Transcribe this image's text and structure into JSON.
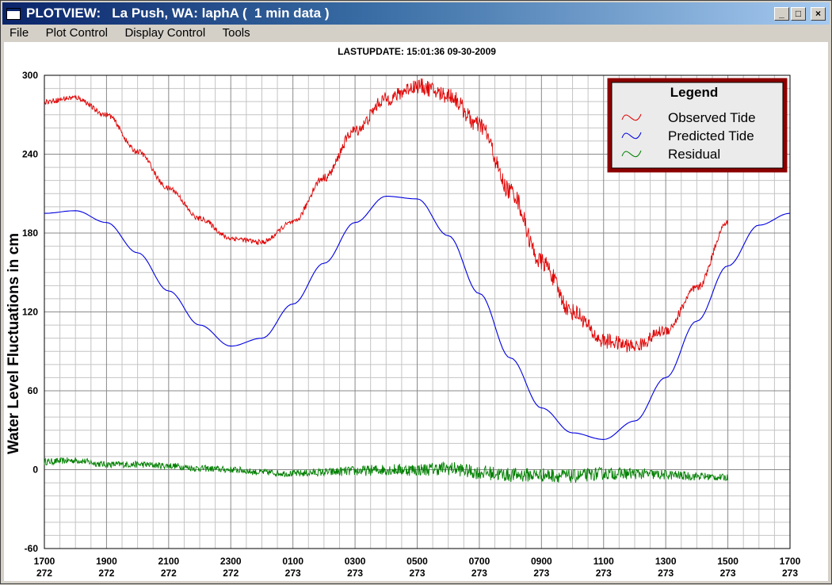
{
  "window": {
    "title": "PLOTVIEW:   La Push, WA: laphA (  1 min data )",
    "minimize_glyph": "_",
    "maximize_glyph": "□",
    "close_glyph": "×"
  },
  "menu": {
    "items": [
      {
        "label": "File"
      },
      {
        "label": "Plot Control"
      },
      {
        "label": "Display Control"
      },
      {
        "label": "Tools"
      }
    ]
  },
  "plot": {
    "last_update": "LASTUPDATE: 15:01:36  09-30-2009"
  },
  "chart_data": {
    "type": "line",
    "title": "",
    "ylabel": "Water Level Fluctuations in cm",
    "xlabel": "",
    "ylim": [
      -60,
      300
    ],
    "y_ticks": [
      "300",
      "240",
      "180",
      "120",
      "60",
      "0",
      "-60"
    ],
    "y_tick_values": [
      300,
      240,
      180,
      120,
      60,
      0,
      -60
    ],
    "x_range_hours": [
      0,
      24
    ],
    "x_ticks": [
      {
        "time": "1700",
        "day": "272"
      },
      {
        "time": "1900",
        "day": "272"
      },
      {
        "time": "2100",
        "day": "272"
      },
      {
        "time": "2300",
        "day": "272"
      },
      {
        "time": "0100",
        "day": "273"
      },
      {
        "time": "0300",
        "day": "273"
      },
      {
        "time": "0500",
        "day": "273"
      },
      {
        "time": "0700",
        "day": "273"
      },
      {
        "time": "0900",
        "day": "273"
      },
      {
        "time": "1100",
        "day": "273"
      },
      {
        "time": "1300",
        "day": "273"
      },
      {
        "time": "1500",
        "day": "273"
      },
      {
        "time": "1700",
        "day": "273"
      }
    ],
    "grid": true,
    "legend": {
      "title": "Legend",
      "placement": "top-right",
      "entries": [
        {
          "name": "Observed Tide",
          "color": "#e00000"
        },
        {
          "name": "Predicted Tide",
          "color": "#0000e0"
        },
        {
          "name": "Residual",
          "color": "#008000"
        }
      ]
    },
    "series": [
      {
        "name": "Predicted Tide",
        "color": "#0000e0",
        "hours": [
          0,
          1,
          2,
          3,
          4,
          5,
          6,
          7,
          8,
          9,
          10,
          11,
          12,
          13,
          14,
          15,
          16,
          17,
          18,
          19,
          20,
          21,
          22,
          23,
          24
        ],
        "values": [
          195,
          197,
          188,
          165,
          136,
          110,
          94,
          100,
          126,
          157,
          188,
          208,
          206,
          178,
          134,
          85,
          47,
          28,
          23,
          37,
          70,
          113,
          155,
          186,
          195
        ]
      },
      {
        "name": "Observed Tide",
        "color": "#e00000",
        "hours": [
          0,
          1,
          2,
          3,
          4,
          5,
          6,
          7,
          8,
          9,
          10,
          11,
          12,
          13,
          14,
          15,
          16,
          17,
          18,
          19,
          20,
          21,
          22
        ],
        "values": [
          280,
          283,
          270,
          242,
          214,
          191,
          176,
          173,
          188,
          222,
          258,
          282,
          292,
          285,
          262,
          212,
          158,
          120,
          98,
          94,
          106,
          138,
          188
        ]
      },
      {
        "name": "Residual",
        "color": "#008000",
        "hours": [
          0,
          1,
          2,
          3,
          4,
          5,
          6,
          7,
          8,
          9,
          10,
          11,
          12,
          13,
          14,
          15,
          16,
          17,
          18,
          19,
          20,
          21,
          22
        ],
        "values": [
          6,
          7,
          4,
          4,
          3,
          1,
          0,
          -2,
          -3,
          -2,
          -1,
          0,
          0,
          1,
          -2,
          -4,
          -4,
          -5,
          -3,
          -3,
          -4,
          -5,
          -6
        ]
      }
    ]
  }
}
